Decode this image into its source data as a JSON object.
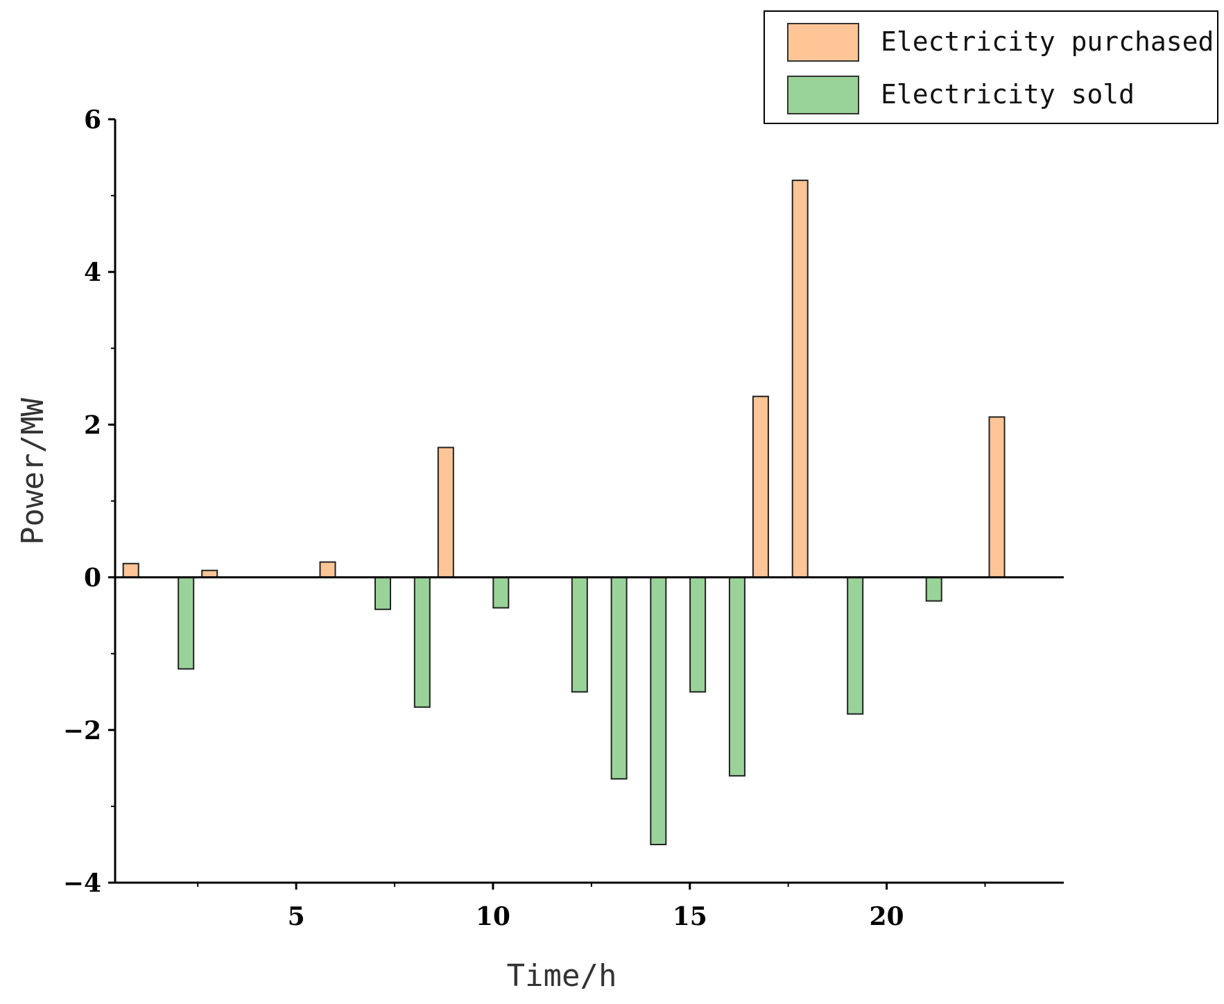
{
  "chart_data": {
    "type": "bar",
    "xlabel": "Time/h",
    "ylabel": "Power/MW",
    "xlim": [
      0.4,
      24.5
    ],
    "ylim": [
      -4,
      6
    ],
    "xticks": [
      5,
      10,
      15,
      20
    ],
    "xminorticks": [
      2.5,
      7.5,
      12.5,
      17.5,
      22.5
    ],
    "yticks": [
      -4,
      -2,
      0,
      2,
      4,
      6
    ],
    "yminorticks": [
      -3,
      -1,
      1,
      3,
      5
    ],
    "grid": false,
    "legend_position": "top-right",
    "series": [
      {
        "name": "Electricity purchased",
        "color": "#FFC596",
        "points": [
          {
            "x": 0.8,
            "y": 0.18
          },
          {
            "x": 2.8,
            "y": 0.09
          },
          {
            "x": 5.8,
            "y": 0.2
          },
          {
            "x": 8.8,
            "y": 1.7
          },
          {
            "x": 16.8,
            "y": 2.37
          },
          {
            "x": 17.8,
            "y": 5.2
          },
          {
            "x": 22.8,
            "y": 2.1
          }
        ]
      },
      {
        "name": "Electricity sold",
        "color": "#9AD39A",
        "points": [
          {
            "x": 2.2,
            "y": -1.2
          },
          {
            "x": 7.2,
            "y": -0.42
          },
          {
            "x": 8.2,
            "y": -1.7
          },
          {
            "x": 10.2,
            "y": -0.4
          },
          {
            "x": 12.2,
            "y": -1.5
          },
          {
            "x": 13.2,
            "y": -2.64
          },
          {
            "x": 14.2,
            "y": -3.5
          },
          {
            "x": 15.2,
            "y": -1.5
          },
          {
            "x": 16.2,
            "y": -2.6
          },
          {
            "x": 19.2,
            "y": -1.79
          },
          {
            "x": 21.2,
            "y": -0.31
          }
        ]
      }
    ]
  }
}
